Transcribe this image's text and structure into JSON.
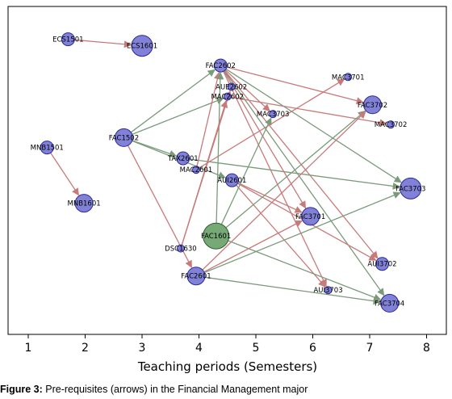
{
  "chart_data": {
    "type": "scatter",
    "title": "",
    "xlabel": "Teaching periods (Semesters)",
    "ylabel": "",
    "xlim": [
      0.5,
      8.3
    ],
    "xticks": [
      1,
      2,
      3,
      4,
      5,
      6,
      7,
      8
    ],
    "grid": false,
    "colors": {
      "node_fill": "#6b6bd1",
      "node_stroke": "#2a2a9a",
      "highlight_fill": "#5f9a5f",
      "highlight_stroke": "#2f5f2f",
      "edge_red": "#c87a7a",
      "edge_green": "#7a9a7a"
    },
    "nodes": [
      {
        "id": "ECS1501",
        "x": 1.7,
        "y": 0.9,
        "size": "small"
      },
      {
        "id": "ECS1601",
        "x": 3.0,
        "y": 0.88,
        "size": "large"
      },
      {
        "id": "FAC2602",
        "x": 4.38,
        "y": 0.82,
        "size": "small"
      },
      {
        "id": "MAC3701",
        "x": 6.62,
        "y": 0.785,
        "size": "tiny"
      },
      {
        "id": "AUE2602",
        "x": 4.57,
        "y": 0.755,
        "size": "tiny"
      },
      {
        "id": "MAC2602",
        "x": 4.5,
        "y": 0.725,
        "size": "tiny"
      },
      {
        "id": "FAC3702",
        "x": 7.05,
        "y": 0.7,
        "size": "medium"
      },
      {
        "id": "MAC3703",
        "x": 5.3,
        "y": 0.672,
        "size": "tiny"
      },
      {
        "id": "MAC3702",
        "x": 7.37,
        "y": 0.64,
        "size": "tiny"
      },
      {
        "id": "FAC1502",
        "x": 2.68,
        "y": 0.6,
        "size": "medium"
      },
      {
        "id": "MNB1501",
        "x": 1.33,
        "y": 0.57,
        "size": "small"
      },
      {
        "id": "TAX2601",
        "x": 3.72,
        "y": 0.537,
        "size": "small"
      },
      {
        "id": "MAC2601",
        "x": 3.95,
        "y": 0.502,
        "size": "tiny"
      },
      {
        "id": "AUI2601",
        "x": 4.58,
        "y": 0.47,
        "size": "small"
      },
      {
        "id": "FAC3703",
        "x": 7.72,
        "y": 0.445,
        "size": "large"
      },
      {
        "id": "MNB1601",
        "x": 1.98,
        "y": 0.4,
        "size": "medium"
      },
      {
        "id": "FAC3701",
        "x": 5.96,
        "y": 0.36,
        "size": "medium"
      },
      {
        "id": "FAC1601",
        "x": 4.3,
        "y": 0.3,
        "size": "xlarge",
        "highlight": true
      },
      {
        "id": "DSC1630",
        "x": 3.68,
        "y": 0.262,
        "size": "tiny"
      },
      {
        "id": "AUI3702",
        "x": 7.22,
        "y": 0.215,
        "size": "small"
      },
      {
        "id": "FAC2601",
        "x": 3.95,
        "y": 0.178,
        "size": "medium"
      },
      {
        "id": "AUI3703",
        "x": 6.27,
        "y": 0.135,
        "size": "tiny"
      },
      {
        "id": "FAC3704",
        "x": 7.35,
        "y": 0.095,
        "size": "medium"
      }
    ],
    "edges": [
      {
        "from": "ECS1501",
        "to": "ECS1601",
        "color": "red"
      },
      {
        "from": "MNB1501",
        "to": "MNB1601",
        "color": "red"
      },
      {
        "from": "FAC2602",
        "to": "FAC3702",
        "color": "red"
      },
      {
        "from": "FAC2602",
        "to": "MAC3703",
        "color": "red"
      },
      {
        "from": "FAC2602",
        "to": "FAC3701",
        "color": "red"
      },
      {
        "from": "FAC2602",
        "to": "AUI3702",
        "color": "red"
      },
      {
        "from": "FAC2602",
        "to": "AUI3703",
        "color": "red"
      },
      {
        "from": "FAC2602",
        "to": "FAC3703",
        "color": "green"
      },
      {
        "from": "FAC2602",
        "to": "FAC3704",
        "color": "green"
      },
      {
        "from": "MAC2602",
        "to": "MAC3702",
        "color": "red"
      },
      {
        "from": "FAC1502",
        "to": "MAC2602",
        "color": "green"
      },
      {
        "from": "FAC1502",
        "to": "FAC2602",
        "color": "green"
      },
      {
        "from": "FAC1502",
        "to": "TAX2601",
        "color": "green"
      },
      {
        "from": "FAC1502",
        "to": "AUI2601",
        "color": "green"
      },
      {
        "from": "FAC1502",
        "to": "FAC2601",
        "color": "red"
      },
      {
        "from": "TAX2601",
        "to": "FAC3703",
        "color": "green"
      },
      {
        "from": "MAC2601",
        "to": "MAC3701",
        "color": "red"
      },
      {
        "from": "MAC2601",
        "to": "FAC2602",
        "color": "red"
      },
      {
        "from": "AUI2601",
        "to": "FAC3701",
        "color": "red"
      },
      {
        "from": "AUI2601",
        "to": "AUI3702",
        "color": "red"
      },
      {
        "from": "AUI2601",
        "to": "AUI3703",
        "color": "red"
      },
      {
        "from": "FAC1601",
        "to": "FAC2602",
        "color": "green"
      },
      {
        "from": "FAC1601",
        "to": "MAC3703",
        "color": "green"
      },
      {
        "from": "FAC1601",
        "to": "FAC3702",
        "color": "green"
      },
      {
        "from": "FAC1601",
        "to": "FAC3704",
        "color": "green"
      },
      {
        "from": "DSC1630",
        "to": "MAC2602",
        "color": "red"
      },
      {
        "from": "DSC1630",
        "to": "AUE2602",
        "color": "red"
      },
      {
        "from": "FAC2601",
        "to": "FAC3702",
        "color": "red"
      },
      {
        "from": "FAC2601",
        "to": "FAC3701",
        "color": "red"
      },
      {
        "from": "FAC2601",
        "to": "FAC3703",
        "color": "green"
      },
      {
        "from": "FAC2601",
        "to": "FAC3704",
        "color": "green"
      }
    ]
  },
  "caption": {
    "label": "Figure 3:",
    "text": " Pre-requisites (arrows) in the Financial Management major"
  }
}
